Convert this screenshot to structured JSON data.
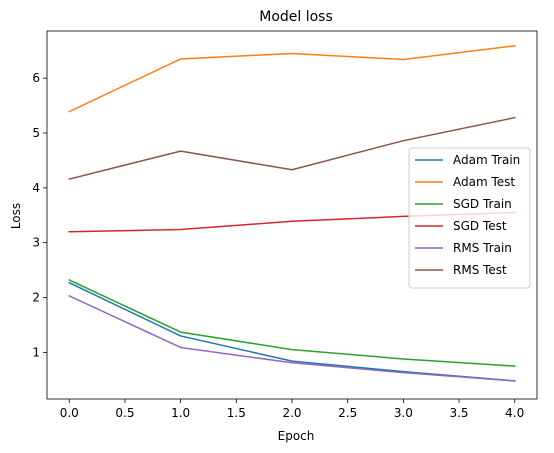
{
  "chart_data": {
    "type": "line",
    "title": "Model loss",
    "xlabel": "Epoch",
    "ylabel": "Loss",
    "xlim": [
      -0.2,
      4.2
    ],
    "ylim": [
      0.15,
      6.86
    ],
    "xticks": [
      0.0,
      0.5,
      1.0,
      1.5,
      2.0,
      2.5,
      3.0,
      3.5,
      4.0
    ],
    "xtick_labels": [
      "0.0",
      "0.5",
      "1.0",
      "1.5",
      "2.0",
      "2.5",
      "3.0",
      "3.5",
      "4.0"
    ],
    "yticks": [
      1,
      2,
      3,
      4,
      5,
      6
    ],
    "ytick_labels": [
      "1",
      "2",
      "3",
      "4",
      "5",
      "6"
    ],
    "grid": false,
    "legend_position": "center-right",
    "x": [
      0,
      1,
      2,
      3,
      4
    ],
    "series": [
      {
        "name": "Adam Train",
        "color": "#1f77b4",
        "values": [
          2.27,
          1.3,
          0.84,
          0.65,
          0.48
        ]
      },
      {
        "name": "Adam Test",
        "color": "#ff7f0e",
        "values": [
          5.39,
          6.35,
          6.45,
          6.34,
          6.59
        ]
      },
      {
        "name": "SGD Train",
        "color": "#2ca02c",
        "values": [
          2.32,
          1.37,
          1.05,
          0.88,
          0.75
        ]
      },
      {
        "name": "SGD Test",
        "color": "#d62728",
        "values": [
          3.2,
          3.24,
          3.39,
          3.48,
          3.55
        ]
      },
      {
        "name": "RMS Train",
        "color": "#9467bd",
        "values": [
          2.03,
          1.09,
          0.81,
          0.63,
          0.48
        ]
      },
      {
        "name": "RMS Test",
        "color": "#8c564b",
        "values": [
          4.16,
          4.67,
          4.33,
          4.86,
          5.28
        ]
      }
    ]
  }
}
